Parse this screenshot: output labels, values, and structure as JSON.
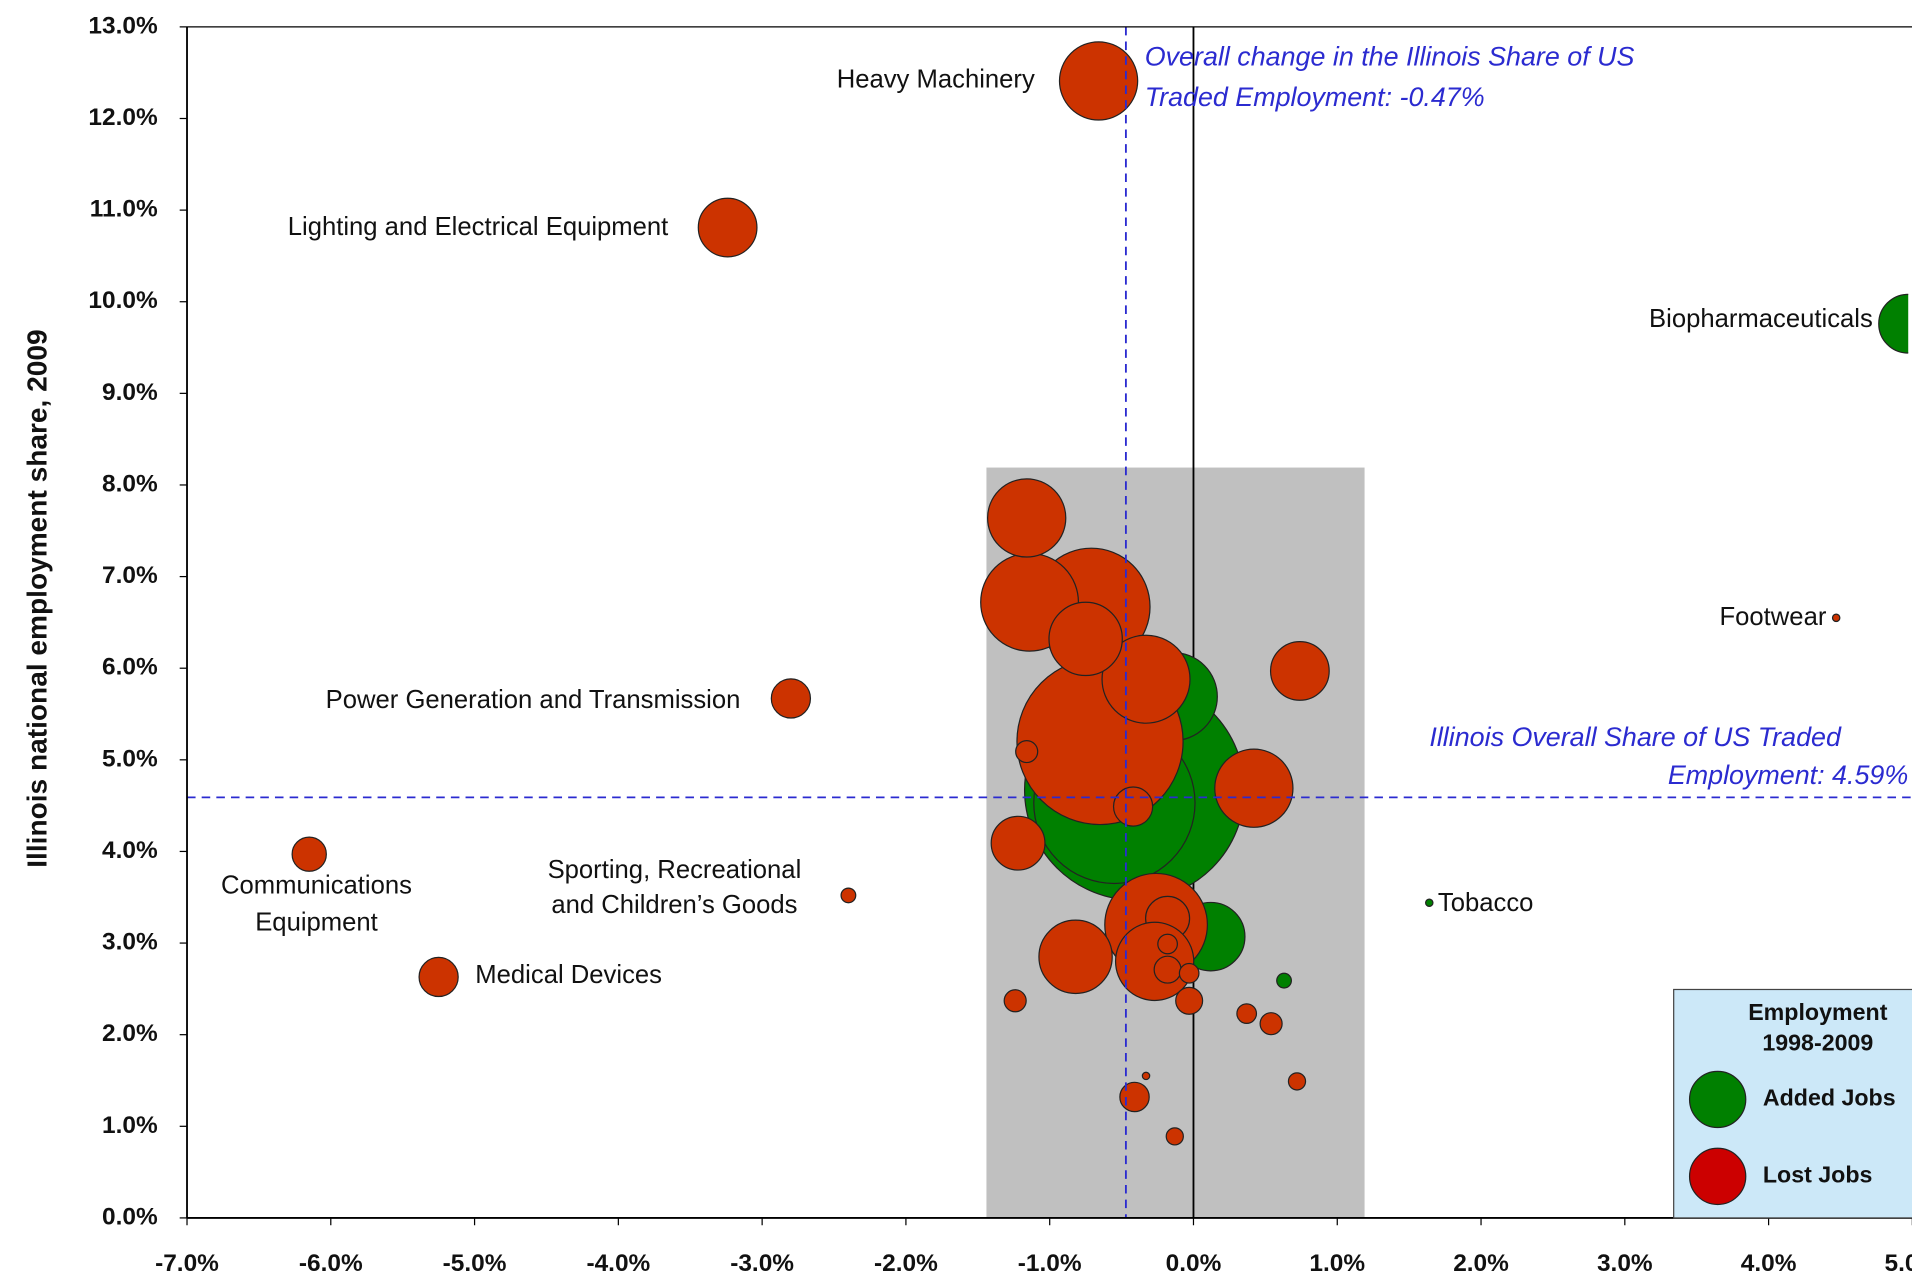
{
  "chart_data": {
    "type": "bubble",
    "ylabel": "Illinois national employment share, 2009",
    "xlim": [
      -7,
      5
    ],
    "ylim": [
      0,
      13
    ],
    "xticks": [
      {
        "value": -7,
        "label": "-7.0%"
      },
      {
        "value": -6,
        "label": "-6.0%"
      },
      {
        "value": -5,
        "label": "-5.0%"
      },
      {
        "value": -4,
        "label": "-4.0%"
      },
      {
        "value": -3,
        "label": "-3.0%"
      },
      {
        "value": -2,
        "label": "-2.0%"
      },
      {
        "value": -1,
        "label": "-1.0%"
      },
      {
        "value": 0,
        "label": "0.0%"
      },
      {
        "value": 1,
        "label": "1.0%"
      },
      {
        "value": 2,
        "label": "2.0%"
      },
      {
        "value": 3,
        "label": "3.0%"
      },
      {
        "value": 4,
        "label": "4.0%"
      },
      {
        "value": 5,
        "label": "5.0%"
      }
    ],
    "yticks": [
      {
        "value": 0,
        "label": "0.0%"
      },
      {
        "value": 1,
        "label": "1.0%"
      },
      {
        "value": 2,
        "label": "2.0%"
      },
      {
        "value": 3,
        "label": "3.0%"
      },
      {
        "value": 4,
        "label": "4.0%"
      },
      {
        "value": 5,
        "label": "5.0%"
      },
      {
        "value": 6,
        "label": "6.0%"
      },
      {
        "value": 7,
        "label": "7.0%"
      },
      {
        "value": 8,
        "label": "8.0%"
      },
      {
        "value": 9,
        "label": "9.0%"
      },
      {
        "value": 10,
        "label": "10.0%"
      },
      {
        "value": 11,
        "label": "11.0%"
      },
      {
        "value": 12,
        "label": "12.0%"
      },
      {
        "value": 13,
        "label": "13.0%"
      }
    ],
    "x_reference": -0.47,
    "y_reference": 4.59,
    "highlight_region": {
      "x": [
        -1.44,
        1.19
      ],
      "y": [
        0,
        8.19
      ]
    },
    "legend_title": [
      "Employment",
      "1998-2009"
    ],
    "series": [
      {
        "name": "Added Jobs",
        "color": "#008000",
        "x": [
          -0.41,
          -0.55,
          -0.14,
          4.97,
          0.12,
          0.63,
          1.64
        ],
        "y": [
          4.67,
          4.53,
          5.69,
          9.76,
          3.07,
          2.59,
          3.44
        ],
        "sizes": [
          90,
          66,
          36,
          24,
          28,
          6,
          3
        ]
      },
      {
        "name": "Lost Jobs",
        "color": "#cc3300",
        "x": [
          -0.65,
          -0.71,
          -1.14,
          -1.16,
          -0.33,
          -0.75,
          0.74,
          -0.66,
          -3.24,
          -2.8,
          -6.15,
          -2.4,
          -5.25,
          4.47,
          -1.16,
          0.42,
          -0.42,
          -1.22,
          -0.26,
          -0.18,
          -0.82,
          -0.27,
          -0.18,
          -0.18,
          -0.03,
          -1.24,
          -0.03,
          0.37,
          0.54,
          0.72,
          -0.33,
          -0.41,
          -0.13
        ],
        "y": [
          5.2,
          6.67,
          6.72,
          7.64,
          5.88,
          6.32,
          5.97,
          12.41,
          10.81,
          5.67,
          3.97,
          3.52,
          2.63,
          6.55,
          5.09,
          4.69,
          4.49,
          4.09,
          3.2,
          3.27,
          2.85,
          2.8,
          2.99,
          2.71,
          2.67,
          2.37,
          2.37,
          2.23,
          2.12,
          1.49,
          1.55,
          1.32,
          0.89
        ],
        "sizes": [
          68,
          48,
          40,
          32,
          36,
          30,
          24,
          32,
          24,
          16,
          14,
          6,
          16,
          3,
          9,
          32,
          16,
          22,
          42,
          18,
          30,
          32,
          8,
          11,
          8,
          9,
          11,
          8,
          9,
          7,
          3,
          12,
          7
        ]
      }
    ],
    "annotations": [
      {
        "lines": [
          "Heavy Machinery"
        ]
      },
      {
        "lines": [
          "Lighting and Electrical Equipment"
        ]
      },
      {
        "lines": [
          "Biopharmaceuticals"
        ]
      },
      {
        "lines": [
          "Footwear"
        ]
      },
      {
        "lines": [
          "Power Generation and Transmission"
        ]
      },
      {
        "lines": [
          "Communications",
          "Equipment"
        ]
      },
      {
        "lines": [
          "Sporting, Recreational",
          "and Children’s Goods"
        ]
      },
      {
        "lines": [
          "Medical Devices"
        ]
      },
      {
        "lines": [
          "Tobacco"
        ]
      },
      {
        "lines": [
          "Overall change in the Illinois Share of US",
          "Traded Employment: -0.47%"
        ]
      },
      {
        "lines": [
          "Illinois Overall Share of US Traded",
          "Employment: 4.59%"
        ]
      }
    ]
  }
}
